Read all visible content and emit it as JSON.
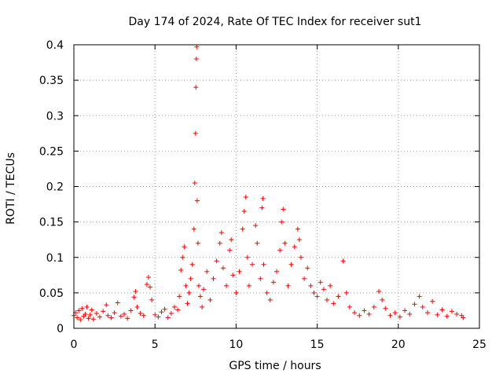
{
  "chart_data": {
    "type": "scatter",
    "title": "Day 174 of 2024, Rate Of TEC Index for receiver sut1",
    "xlabel": "GPS time / hours",
    "ylabel": "ROTI / TECUs",
    "xlim": [
      0,
      25
    ],
    "ylim": [
      0,
      0.4
    ],
    "xticks": [
      0,
      5,
      10,
      15,
      20,
      25
    ],
    "xtick_labels": [
      "0",
      "5",
      "10",
      "15",
      "20",
      "25"
    ],
    "yticks": [
      0,
      0.05,
      0.1,
      0.15,
      0.2,
      0.25,
      0.3,
      0.35,
      0.4
    ],
    "ytick_labels": [
      "0",
      "0.05",
      "0.1",
      "0.15",
      "0.2",
      "0.25",
      "0.3",
      "0.35",
      "0.4"
    ],
    "grid": true,
    "marker": "+",
    "color": "#ff0000",
    "series": [
      {
        "name": "sut1",
        "points": [
          [
            0.0,
            0.018
          ],
          [
            0.1,
            0.022
          ],
          [
            0.2,
            0.015
          ],
          [
            0.3,
            0.025
          ],
          [
            0.4,
            0.012
          ],
          [
            0.5,
            0.028
          ],
          [
            0.6,
            0.017
          ],
          [
            0.7,
            0.02
          ],
          [
            0.8,
            0.03
          ],
          [
            0.9,
            0.014
          ],
          [
            1.0,
            0.019
          ],
          [
            1.1,
            0.026
          ],
          [
            1.2,
            0.013
          ],
          [
            1.4,
            0.021
          ],
          [
            1.6,
            0.016
          ],
          [
            1.8,
            0.024
          ],
          [
            2.0,
            0.033
          ],
          [
            2.1,
            0.018
          ],
          [
            2.3,
            0.015
          ],
          [
            2.5,
            0.022
          ],
          [
            2.7,
            0.036
          ],
          [
            2.9,
            0.017
          ],
          [
            3.1,
            0.02
          ],
          [
            3.3,
            0.014
          ],
          [
            3.5,
            0.025
          ],
          [
            3.7,
            0.044
          ],
          [
            3.8,
            0.052
          ],
          [
            3.9,
            0.03
          ],
          [
            4.1,
            0.021
          ],
          [
            4.3,
            0.018
          ],
          [
            4.5,
            0.062
          ],
          [
            4.6,
            0.072
          ],
          [
            4.7,
            0.058
          ],
          [
            4.8,
            0.04
          ],
          [
            5.0,
            0.019
          ],
          [
            5.2,
            0.016
          ],
          [
            5.4,
            0.023
          ],
          [
            5.6,
            0.027
          ],
          [
            5.8,
            0.015
          ],
          [
            6.0,
            0.021
          ],
          [
            6.2,
            0.03
          ],
          [
            6.4,
            0.026
          ],
          [
            6.5,
            0.045
          ],
          [
            6.6,
            0.082
          ],
          [
            6.7,
            0.1
          ],
          [
            6.8,
            0.115
          ],
          [
            6.9,
            0.06
          ],
          [
            7.0,
            0.035
          ],
          [
            7.1,
            0.05
          ],
          [
            7.2,
            0.07
          ],
          [
            7.3,
            0.09
          ],
          [
            7.4,
            0.14
          ],
          [
            7.45,
            0.205
          ],
          [
            7.5,
            0.275
          ],
          [
            7.52,
            0.34
          ],
          [
            7.55,
            0.38
          ],
          [
            7.57,
            0.397
          ],
          [
            7.6,
            0.18
          ],
          [
            7.65,
            0.12
          ],
          [
            7.7,
            0.06
          ],
          [
            7.8,
            0.045
          ],
          [
            7.9,
            0.03
          ],
          [
            8.0,
            0.055
          ],
          [
            8.2,
            0.08
          ],
          [
            8.4,
            0.04
          ],
          [
            8.6,
            0.07
          ],
          [
            8.8,
            0.095
          ],
          [
            9.0,
            0.12
          ],
          [
            9.1,
            0.135
          ],
          [
            9.2,
            0.085
          ],
          [
            9.4,
            0.06
          ],
          [
            9.6,
            0.11
          ],
          [
            9.7,
            0.125
          ],
          [
            9.8,
            0.075
          ],
          [
            10.0,
            0.05
          ],
          [
            10.2,
            0.08
          ],
          [
            10.4,
            0.14
          ],
          [
            10.5,
            0.165
          ],
          [
            10.6,
            0.185
          ],
          [
            10.7,
            0.1
          ],
          [
            10.8,
            0.06
          ],
          [
            11.0,
            0.09
          ],
          [
            11.2,
            0.145
          ],
          [
            11.3,
            0.12
          ],
          [
            11.5,
            0.07
          ],
          [
            11.6,
            0.17
          ],
          [
            11.65,
            0.183
          ],
          [
            11.7,
            0.09
          ],
          [
            11.9,
            0.05
          ],
          [
            12.1,
            0.04
          ],
          [
            12.3,
            0.065
          ],
          [
            12.5,
            0.08
          ],
          [
            12.7,
            0.11
          ],
          [
            12.8,
            0.15
          ],
          [
            12.9,
            0.168
          ],
          [
            13.0,
            0.12
          ],
          [
            13.2,
            0.06
          ],
          [
            13.4,
            0.09
          ],
          [
            13.6,
            0.115
          ],
          [
            13.8,
            0.14
          ],
          [
            13.9,
            0.125
          ],
          [
            14.0,
            0.1
          ],
          [
            14.2,
            0.07
          ],
          [
            14.4,
            0.085
          ],
          [
            14.6,
            0.06
          ],
          [
            14.8,
            0.05
          ],
          [
            15.0,
            0.045
          ],
          [
            15.2,
            0.065
          ],
          [
            15.4,
            0.055
          ],
          [
            15.6,
            0.04
          ],
          [
            15.8,
            0.06
          ],
          [
            16.0,
            0.035
          ],
          [
            16.3,
            0.045
          ],
          [
            16.6,
            0.095
          ],
          [
            16.8,
            0.05
          ],
          [
            17.0,
            0.03
          ],
          [
            17.3,
            0.022
          ],
          [
            17.6,
            0.018
          ],
          [
            17.9,
            0.025
          ],
          [
            18.2,
            0.02
          ],
          [
            18.5,
            0.03
          ],
          [
            18.8,
            0.052
          ],
          [
            19.0,
            0.04
          ],
          [
            19.2,
            0.028
          ],
          [
            19.5,
            0.018
          ],
          [
            19.8,
            0.022
          ],
          [
            20.1,
            0.016
          ],
          [
            20.4,
            0.025
          ],
          [
            20.7,
            0.02
          ],
          [
            21.0,
            0.034
          ],
          [
            21.3,
            0.045
          ],
          [
            21.5,
            0.03
          ],
          [
            21.8,
            0.022
          ],
          [
            22.1,
            0.038
          ],
          [
            22.4,
            0.019
          ],
          [
            22.7,
            0.026
          ],
          [
            23.0,
            0.017
          ],
          [
            23.3,
            0.024
          ],
          [
            23.6,
            0.02
          ],
          [
            23.9,
            0.018
          ],
          [
            24.0,
            0.015
          ]
        ]
      }
    ]
  }
}
